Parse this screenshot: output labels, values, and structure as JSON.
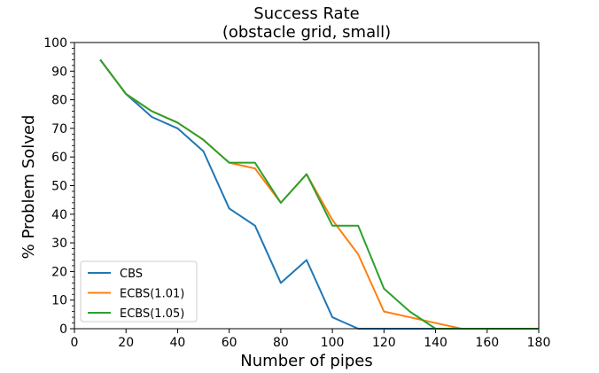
{
  "chart_data": {
    "type": "line",
    "title": "Success Rate",
    "subtitle": "(obstacle grid, small)",
    "xlabel": "Number of pipes",
    "ylabel": "% Problem Solved",
    "xlim": [
      0,
      180
    ],
    "ylim": [
      0,
      100
    ],
    "x_ticks": [
      0,
      20,
      40,
      60,
      80,
      100,
      120,
      140,
      160,
      180
    ],
    "y_ticks": [
      0,
      10,
      20,
      30,
      40,
      50,
      60,
      70,
      80,
      90,
      100
    ],
    "grid": false,
    "legend_position": "bottom-left",
    "series": [
      {
        "name": "CBS",
        "color": "#1f77b4",
        "x": [
          10,
          20,
          30,
          40,
          50,
          60,
          70,
          80,
          90,
          100,
          110,
          120,
          130,
          140,
          150,
          160,
          170,
          180
        ],
        "y": [
          94,
          82,
          74,
          70,
          62,
          42,
          36,
          16,
          24,
          4,
          0,
          0,
          0,
          0,
          0,
          0,
          0,
          0
        ]
      },
      {
        "name": "ECBS(1.01)",
        "color": "#ff7f0e",
        "x": [
          10,
          20,
          30,
          40,
          50,
          60,
          70,
          80,
          90,
          100,
          110,
          120,
          130,
          140,
          150,
          160,
          170,
          180
        ],
        "y": [
          94,
          82,
          76,
          72,
          66,
          58,
          56,
          44,
          54,
          38,
          26,
          6,
          4,
          2,
          0,
          0,
          0,
          0
        ]
      },
      {
        "name": "ECBS(1.05)",
        "color": "#2ca02c",
        "x": [
          10,
          20,
          30,
          40,
          50,
          60,
          70,
          80,
          90,
          100,
          110,
          120,
          130,
          140,
          150,
          160,
          170,
          180
        ],
        "y": [
          94,
          82,
          76,
          72,
          66,
          58,
          58,
          44,
          54,
          36,
          36,
          14,
          6,
          0,
          0,
          0,
          0,
          0
        ]
      }
    ]
  }
}
